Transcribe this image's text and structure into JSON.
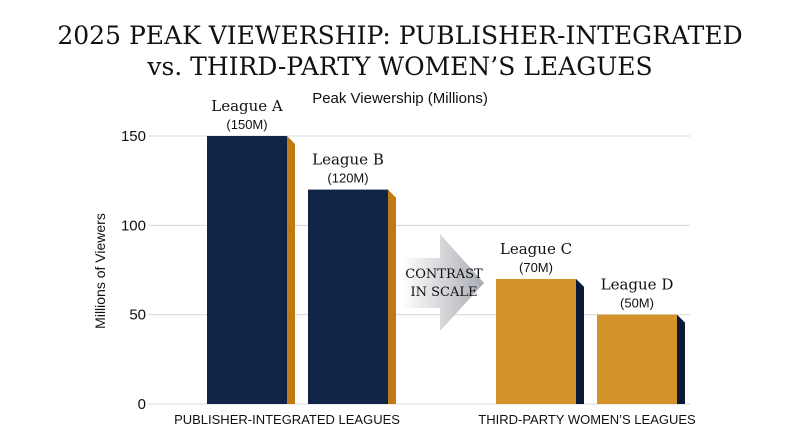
{
  "chart_data": {
    "type": "bar",
    "title_line1": "2025 PEAK VIEWERSHIP: PUBLISHER-INTEGRATED",
    "title_line2": "vs. THIRD-PARTY WOMEN’S LEAGUES",
    "subtitle": "Peak Viewership (Millions)",
    "ylabel": "Millions of Viewers",
    "ylim": [
      0,
      150
    ],
    "yticks": [
      "0",
      "50",
      "100",
      "150"
    ],
    "grid": true,
    "bars": [
      {
        "name": "League A",
        "value_label": "(150M)",
        "value": 150,
        "group": "publisher"
      },
      {
        "name": "League B",
        "value_label": "(120M)",
        "value": 120,
        "group": "publisher"
      },
      {
        "name": "League C",
        "value_label": "(70M)",
        "value": 70,
        "group": "third-party"
      },
      {
        "name": "League D",
        "value_label": "(50M)",
        "value": 50,
        "group": "third-party"
      }
    ],
    "groups": [
      {
        "id": "publisher",
        "label": "PUBLISHER-INTEGRATED LEAGUES"
      },
      {
        "id": "third-party",
        "label": "THIRD-PARTY WOMEN’S LEAGUES"
      }
    ],
    "annotation": {
      "line1": "CONTRAST",
      "line2": "IN SCALE"
    },
    "colors": {
      "navy": "#0f2447",
      "gold": "#d4922a",
      "navy_side": "#0a1a36",
      "gold_side": "#c07a15",
      "grid": "#d8d8d8",
      "text": "#111111"
    }
  }
}
